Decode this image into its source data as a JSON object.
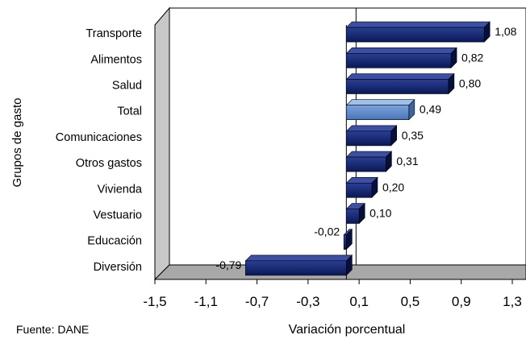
{
  "chart_data": {
    "type": "bar",
    "orientation": "horizontal",
    "three_d": true,
    "categories": [
      "Transporte",
      "Alimentos",
      "Salud",
      "Total",
      "Comunicaciones",
      "Otros gastos",
      "Vivienda",
      "Vestuario",
      "Educación",
      "Diversión"
    ],
    "values": [
      1.08,
      0.82,
      0.8,
      0.49,
      0.35,
      0.31,
      0.2,
      0.1,
      -0.02,
      -0.79
    ],
    "value_labels": [
      "1,08",
      "0,82",
      "0,80",
      "0,49",
      "0,35",
      "0,31",
      "0,20",
      "0,10",
      "-0,02",
      "-0,79"
    ],
    "highlight_category": "Total",
    "colors": {
      "bar": "#0d1f6b",
      "bar_highlight": "#5a86c6",
      "wall": "#c8c8c8",
      "floor": "#a8a8a8"
    },
    "xlim": [
      -1.5,
      1.3
    ],
    "xticks": [
      -1.5,
      -1.1,
      -0.7,
      -0.3,
      0.1,
      0.5,
      0.9,
      1.3
    ],
    "xtick_labels": [
      "-1,5",
      "-1,1",
      "-0,7",
      "-0,3",
      "0,1",
      "0,5",
      "0,9",
      "1,3"
    ],
    "xlabel": "Variación porcentual",
    "ylabel": "Grupos de gasto",
    "grid": false,
    "legend": "none"
  },
  "source_note": "Fuente: DANE"
}
